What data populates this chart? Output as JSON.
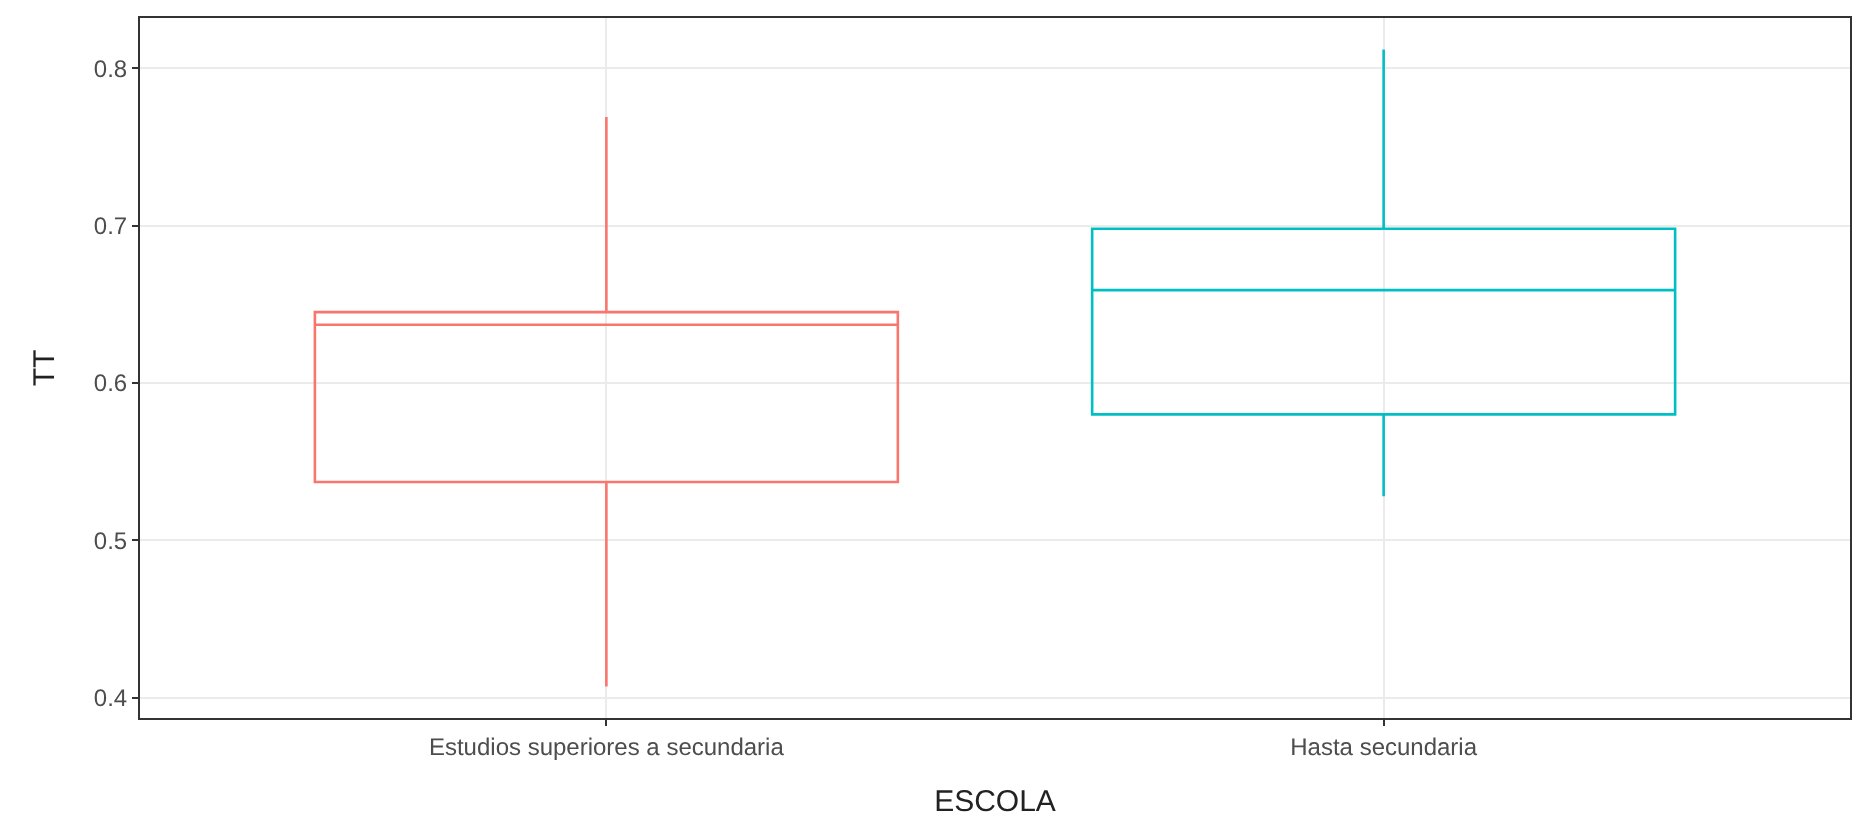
{
  "chart_data": {
    "type": "box",
    "xlabel": "ESCOLA",
    "ylabel": "TT",
    "categories": [
      "Estudios superiores a secundaria",
      "Hasta secundaria"
    ],
    "colors": [
      "#f8766d",
      "#00bfc4"
    ],
    "boxes": [
      {
        "low": 0.407,
        "q1": 0.537,
        "median": 0.637,
        "q3": 0.645,
        "high": 0.769
      },
      {
        "low": 0.528,
        "q1": 0.58,
        "median": 0.659,
        "q3": 0.698,
        "high": 0.812
      }
    ],
    "ylim": [
      0.387,
      0.832
    ],
    "yticks": [
      0.4,
      0.5,
      0.6,
      0.7,
      0.8
    ],
    "grid": true
  }
}
